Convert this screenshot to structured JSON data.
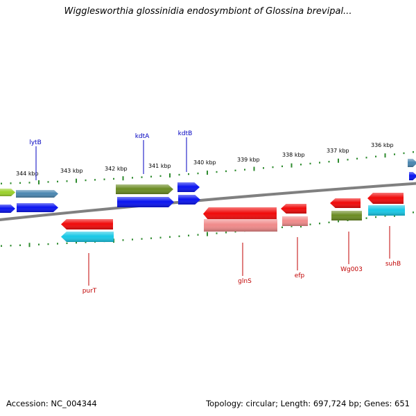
{
  "title": "Wigglesworthia glossinidia endosymbiont of Glossina brevipal...",
  "footer": {
    "accession": "Accession: NC_004344",
    "summary": "Topology: circular; Length: 697,724 bp; Genes: 651"
  },
  "colors": {
    "backbone": "#808080",
    "tick": "#2e8b2e",
    "forward_label": "#0000c0",
    "reverse_label": "#c00000",
    "blue": "#0a14f0",
    "olive": "#6b8c23",
    "red": "#f00a0a",
    "pink": "#f08a8a",
    "cyan": "#18c8e6",
    "lime": "#9bd12a",
    "slate": "#4a86b0"
  },
  "scale": {
    "kbp_labels": [
      "344 kbp",
      "343 kbp",
      "342 kbp",
      "341 kbp",
      "340 kbp",
      "339 kbp",
      "338 kbp",
      "337 kbp",
      "336 kbp"
    ]
  },
  "labels": {
    "forward": [
      "lytB",
      "kdtA",
      "kdtB"
    ],
    "reverse": [
      "purT",
      "glnS",
      "efp",
      "Wg003",
      "suhB"
    ]
  }
}
